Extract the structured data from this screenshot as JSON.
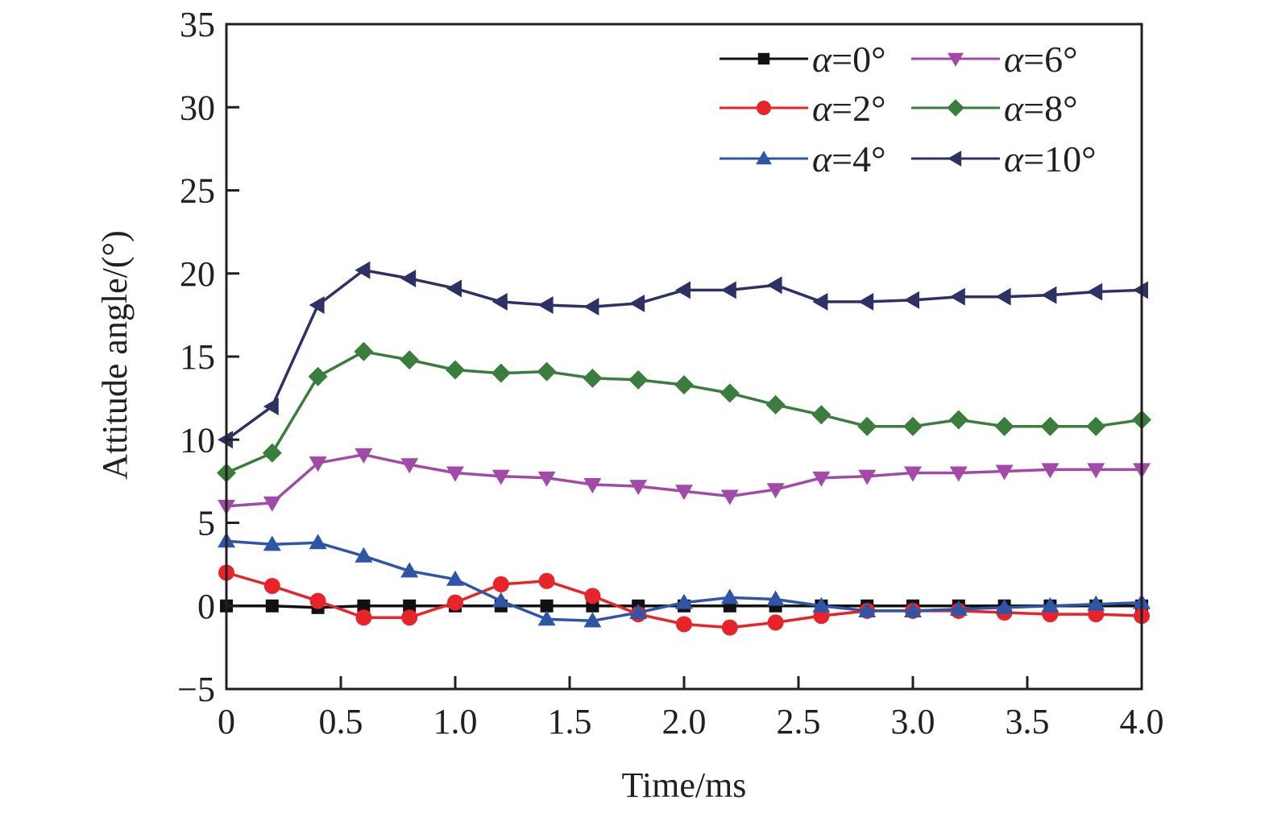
{
  "chart_data": {
    "type": "line",
    "title": "",
    "xlabel": "Time/ms",
    "ylabel": "Attitude angle/(°)",
    "xlim": [
      0,
      4.0
    ],
    "ylim": [
      -5,
      35
    ],
    "x_ticks": [
      0,
      0.5,
      1.0,
      1.5,
      2.0,
      2.5,
      3.0,
      3.5,
      4.0
    ],
    "x_tick_labels": [
      "0",
      "0.5",
      "1.0",
      "1.5",
      "2.0",
      "2.5",
      "3.0",
      "3.5",
      "4.0"
    ],
    "y_ticks": [
      -5,
      0,
      5,
      10,
      15,
      20,
      25,
      30,
      35
    ],
    "y_tick_labels": [
      "−5",
      "0",
      "5",
      "10",
      "15",
      "20",
      "25",
      "30",
      "35"
    ],
    "grid": false,
    "legend_position": "top-right",
    "legend_columns": 2,
    "x": [
      0,
      0.2,
      0.4,
      0.6,
      0.8,
      1.0,
      1.2,
      1.4,
      1.6,
      1.8,
      2.0,
      2.2,
      2.4,
      2.6,
      2.8,
      3.0,
      3.2,
      3.4,
      3.6,
      3.8,
      4.0
    ],
    "series": [
      {
        "name": "α=0°",
        "symbol": "α",
        "value_label": "=0°",
        "color": "#111111",
        "marker": "square",
        "values": [
          0,
          0,
          -0.1,
          0,
          0,
          0,
          0,
          0,
          0,
          0,
          0,
          0,
          0,
          0,
          0,
          0,
          0,
          0,
          0,
          0,
          0
        ]
      },
      {
        "name": "α=2°",
        "symbol": "α",
        "value_label": "=2°",
        "color": "#e8232a",
        "marker": "circle",
        "values": [
          2.0,
          1.2,
          0.3,
          -0.7,
          -0.7,
          0.2,
          1.3,
          1.5,
          0.6,
          -0.5,
          -1.1,
          -1.3,
          -1.0,
          -0.6,
          -0.3,
          -0.3,
          -0.3,
          -0.4,
          -0.5,
          -0.5,
          -0.6
        ]
      },
      {
        "name": "α=4°",
        "symbol": "α",
        "value_label": "=4°",
        "color": "#2f55a6",
        "marker": "triangle-up",
        "values": [
          3.9,
          3.7,
          3.8,
          3.0,
          2.1,
          1.6,
          0.3,
          -0.8,
          -0.9,
          -0.4,
          0.2,
          0.5,
          0.4,
          0,
          -0.3,
          -0.3,
          -0.2,
          -0.1,
          0,
          0.1,
          0.2
        ]
      },
      {
        "name": "α=6°",
        "symbol": "α",
        "value_label": "=6°",
        "color": "#a14aa8",
        "marker": "triangle-down",
        "values": [
          6.0,
          6.2,
          8.6,
          9.1,
          8.5,
          8.0,
          7.8,
          7.7,
          7.3,
          7.2,
          6.9,
          6.6,
          7.0,
          7.7,
          7.8,
          8.0,
          8.0,
          8.1,
          8.2,
          8.2,
          8.2
        ]
      },
      {
        "name": "α=8°",
        "symbol": "α",
        "value_label": "=8°",
        "color": "#3a7d3c",
        "marker": "diamond",
        "values": [
          8.0,
          9.2,
          13.8,
          15.3,
          14.8,
          14.2,
          14.0,
          14.1,
          13.7,
          13.6,
          13.3,
          12.8,
          12.1,
          11.5,
          10.8,
          10.8,
          11.2,
          10.8,
          10.8,
          10.8,
          11.2
        ]
      },
      {
        "name": "α=10°",
        "symbol": "α",
        "value_label": "=10°",
        "color": "#2e3163",
        "marker": "triangle-left",
        "values": [
          10.0,
          12.0,
          18.1,
          20.2,
          19.7,
          19.1,
          18.3,
          18.1,
          18.0,
          18.2,
          19.0,
          19.0,
          19.3,
          18.3,
          18.3,
          18.4,
          18.6,
          18.6,
          18.7,
          18.9,
          19.0
        ]
      }
    ]
  }
}
